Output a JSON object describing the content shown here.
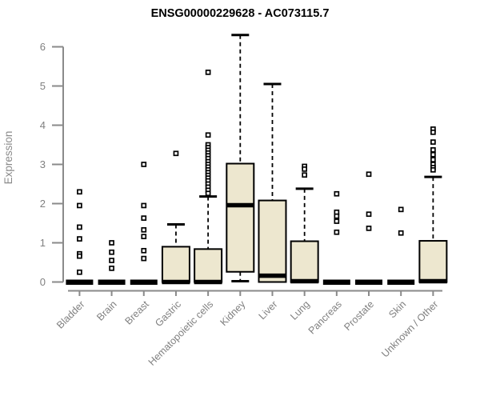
{
  "title": "ENSG00000229628 - AC073115.7",
  "chart_data": {
    "type": "boxplot",
    "title": "ENSG00000229628 - AC073115.7",
    "ylabel": "Expression",
    "xlabel": "",
    "ylim": [
      0,
      6
    ],
    "yticks": [
      0,
      1,
      2,
      3,
      4,
      5,
      6
    ],
    "grid": false,
    "legend": "none",
    "categories": [
      "Bladder",
      "Brain",
      "Breast",
      "Gastric",
      "Hematopoietic cells",
      "Kidney",
      "Liver",
      "Lung",
      "Pancreas",
      "Prostate",
      "Skin",
      "Unknown / Other"
    ],
    "series": [
      {
        "name": "Bladder",
        "q1": 0,
        "median": 0,
        "q3": 0,
        "whisker_low": 0,
        "whisker_high": 0,
        "outliers": [
          2.3,
          1.95,
          1.4,
          1.1,
          0.72,
          0.66,
          0.25
        ]
      },
      {
        "name": "Brain",
        "q1": 0,
        "median": 0,
        "q3": 0,
        "whisker_low": 0,
        "whisker_high": 0,
        "outliers": [
          1.0,
          0.76,
          0.55,
          0.35
        ]
      },
      {
        "name": "Breast",
        "q1": 0,
        "median": 0,
        "q3": 0,
        "whisker_low": 0,
        "whisker_high": 0,
        "outliers": [
          3.0,
          1.95,
          1.63,
          1.33,
          1.16,
          0.8,
          0.6
        ]
      },
      {
        "name": "Gastric",
        "q1": 0,
        "median": 0,
        "q3": 0.9,
        "whisker_low": 0,
        "whisker_high": 1.47,
        "outliers": [
          3.28
        ]
      },
      {
        "name": "Hematopoietic cells",
        "q1": 0,
        "median": 0,
        "q3": 0.84,
        "whisker_low": 0,
        "whisker_high": 2.18,
        "outliers": [
          5.35,
          3.75,
          3.5,
          3.43,
          3.36,
          3.29,
          3.22,
          3.15,
          3.07,
          3.0,
          2.93,
          2.86,
          2.79,
          2.72,
          2.65,
          2.58,
          2.5,
          2.42,
          2.34,
          2.26
        ]
      },
      {
        "name": "Kidney",
        "q1": 0.26,
        "median": 1.96,
        "q3": 3.02,
        "whisker_low": 0.02,
        "whisker_high": 6.3,
        "outliers": []
      },
      {
        "name": "Liver",
        "q1": 0,
        "median": 0.16,
        "q3": 2.08,
        "whisker_low": 0,
        "whisker_high": 5.05,
        "outliers": []
      },
      {
        "name": "Lung",
        "q1": 0,
        "median": 0.02,
        "q3": 1.04,
        "whisker_low": 0,
        "whisker_high": 2.38,
        "outliers": [
          2.95,
          2.88,
          2.73
        ]
      },
      {
        "name": "Pancreas",
        "q1": 0,
        "median": 0,
        "q3": 0,
        "whisker_low": 0,
        "whisker_high": 0,
        "outliers": [
          2.25,
          1.78,
          1.68,
          1.55,
          1.27
        ]
      },
      {
        "name": "Prostate",
        "q1": 0,
        "median": 0,
        "q3": 0,
        "whisker_low": 0,
        "whisker_high": 0,
        "outliers": [
          2.75,
          1.73,
          1.37
        ]
      },
      {
        "name": "Skin",
        "q1": 0,
        "median": 0,
        "q3": 0,
        "whisker_low": 0,
        "whisker_high": 0,
        "outliers": [
          1.85,
          1.25
        ]
      },
      {
        "name": "Unknown / Other",
        "q1": 0,
        "median": 0.02,
        "q3": 1.05,
        "whisker_low": 0,
        "whisker_high": 2.68,
        "outliers": [
          3.9,
          3.82,
          3.57,
          3.37,
          3.25,
          3.12,
          3.0,
          2.92,
          2.86
        ]
      }
    ]
  },
  "colors": {
    "box_fill": "#EDE7CF",
    "box_stroke": "#000000",
    "median": "#000000",
    "whisker": "#000000",
    "outlier": "#000000",
    "axis": "#8A8A8A",
    "tick_label": "#808080",
    "title": "#000000",
    "background": "#FFFFFF"
  }
}
